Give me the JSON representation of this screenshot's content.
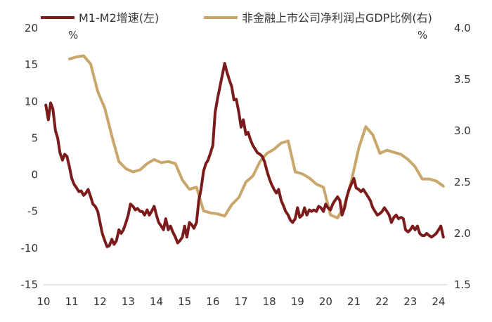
{
  "chart_data": {
    "type": "line",
    "legend": {
      "placement": "top",
      "entries": [
        {
          "label": "M1-M2增速(左)",
          "color": "#7B1B1B"
        },
        {
          "label": "非金融上市公司净利润占GDP比例(右)",
          "color": "#C9A76A"
        }
      ]
    },
    "x_axis": {
      "ticks": [
        "10",
        "11",
        "12",
        "13",
        "14",
        "15",
        "16",
        "17",
        "18",
        "19",
        "20",
        "21",
        "22",
        "23",
        "24"
      ],
      "range": [
        2010,
        2024.3
      ]
    },
    "y_left": {
      "range": [
        -15,
        20
      ],
      "ticks": [
        "20",
        "15",
        "10",
        "5",
        "0",
        "-5",
        "-10",
        "-15"
      ],
      "unit": "%"
    },
    "y_right": {
      "range": [
        1.5,
        4.0
      ],
      "ticks": [
        "4.0",
        "3.5",
        "3.0",
        "2.5",
        "2.0",
        "1.5"
      ],
      "unit": "%"
    },
    "series": [
      {
        "name": "M1-M2增速(左)",
        "axis": "left",
        "color": "#7B1B1B",
        "points": [
          [
            2010.08,
            9.5
          ],
          [
            2010.17,
            7.5
          ],
          [
            2010.25,
            9.8
          ],
          [
            2010.33,
            9.0
          ],
          [
            2010.42,
            6.0
          ],
          [
            2010.5,
            5.0
          ],
          [
            2010.58,
            3.0
          ],
          [
            2010.67,
            2.0
          ],
          [
            2010.75,
            2.8
          ],
          [
            2010.83,
            2.5
          ],
          [
            2010.92,
            1.0
          ],
          [
            2011.0,
            -0.5
          ],
          [
            2011.08,
            -1.3
          ],
          [
            2011.17,
            -1.8
          ],
          [
            2011.25,
            -2.3
          ],
          [
            2011.33,
            -2.2
          ],
          [
            2011.42,
            -2.8
          ],
          [
            2011.5,
            -2.5
          ],
          [
            2011.58,
            -2.0
          ],
          [
            2011.67,
            -3.0
          ],
          [
            2011.75,
            -4.0
          ],
          [
            2011.83,
            -4.3
          ],
          [
            2011.92,
            -5.0
          ],
          [
            2012.0,
            -6.5
          ],
          [
            2012.08,
            -8.0
          ],
          [
            2012.17,
            -9.0
          ],
          [
            2012.25,
            -9.8
          ],
          [
            2012.33,
            -9.7
          ],
          [
            2012.42,
            -8.8
          ],
          [
            2012.5,
            -9.5
          ],
          [
            2012.58,
            -9.0
          ],
          [
            2012.67,
            -7.5
          ],
          [
            2012.75,
            -8.0
          ],
          [
            2012.83,
            -7.5
          ],
          [
            2012.92,
            -6.5
          ],
          [
            2013.0,
            -5.5
          ],
          [
            2013.08,
            -4.0
          ],
          [
            2013.17,
            -4.3
          ],
          [
            2013.25,
            -4.8
          ],
          [
            2013.33,
            -4.6
          ],
          [
            2013.42,
            -5.0
          ],
          [
            2013.5,
            -5.0
          ],
          [
            2013.58,
            -5.5
          ],
          [
            2013.67,
            -4.8
          ],
          [
            2013.75,
            -5.5
          ],
          [
            2013.83,
            -5.0
          ],
          [
            2013.92,
            -4.3
          ],
          [
            2014.0,
            -5.5
          ],
          [
            2014.08,
            -6.5
          ],
          [
            2014.17,
            -7.0
          ],
          [
            2014.25,
            -7.5
          ],
          [
            2014.33,
            -6.0
          ],
          [
            2014.42,
            -7.5
          ],
          [
            2014.5,
            -7.0
          ],
          [
            2014.58,
            -7.8
          ],
          [
            2014.67,
            -8.5
          ],
          [
            2014.75,
            -9.3
          ],
          [
            2014.83,
            -9.0
          ],
          [
            2014.92,
            -8.5
          ],
          [
            2015.0,
            -7.0
          ],
          [
            2015.08,
            -8.5
          ],
          [
            2015.17,
            -6.5
          ],
          [
            2015.25,
            -6.8
          ],
          [
            2015.33,
            -7.3
          ],
          [
            2015.42,
            -6.5
          ],
          [
            2015.5,
            -3.5
          ],
          [
            2015.58,
            -2.0
          ],
          [
            2015.67,
            0.5
          ],
          [
            2015.75,
            1.5
          ],
          [
            2015.83,
            2.0
          ],
          [
            2015.92,
            3.0
          ],
          [
            2016.0,
            4.0
          ],
          [
            2016.08,
            8.5
          ],
          [
            2016.17,
            10.5
          ],
          [
            2016.25,
            12.0
          ],
          [
            2016.33,
            13.5
          ],
          [
            2016.42,
            15.2
          ],
          [
            2016.5,
            14.0
          ],
          [
            2016.58,
            13.0
          ],
          [
            2016.67,
            12.0
          ],
          [
            2016.75,
            10.2
          ],
          [
            2016.83,
            10.3
          ],
          [
            2016.92,
            8.5
          ],
          [
            2017.0,
            6.5
          ],
          [
            2017.08,
            7.5
          ],
          [
            2017.17,
            5.5
          ],
          [
            2017.25,
            5.8
          ],
          [
            2017.33,
            4.8
          ],
          [
            2017.42,
            4.0
          ],
          [
            2017.5,
            3.5
          ],
          [
            2017.58,
            3.0
          ],
          [
            2017.67,
            2.8
          ],
          [
            2017.75,
            2.5
          ],
          [
            2017.83,
            1.8
          ],
          [
            2017.92,
            0.5
          ],
          [
            2018.0,
            -0.5
          ],
          [
            2018.08,
            -1.3
          ],
          [
            2018.17,
            -2.0
          ],
          [
            2018.25,
            -2.5
          ],
          [
            2018.33,
            -2.0
          ],
          [
            2018.42,
            -3.5
          ],
          [
            2018.5,
            -4.2
          ],
          [
            2018.58,
            -5.0
          ],
          [
            2018.67,
            -5.5
          ],
          [
            2018.75,
            -6.2
          ],
          [
            2018.83,
            -6.5
          ],
          [
            2018.92,
            -6.0
          ],
          [
            2019.0,
            -4.5
          ],
          [
            2019.08,
            -5.8
          ],
          [
            2019.17,
            -5.5
          ],
          [
            2019.25,
            -4.5
          ],
          [
            2019.33,
            -5.5
          ],
          [
            2019.42,
            -4.8
          ],
          [
            2019.5,
            -5.0
          ],
          [
            2019.58,
            -4.8
          ],
          [
            2019.67,
            -5.0
          ],
          [
            2019.75,
            -4.3
          ],
          [
            2019.83,
            -4.5
          ],
          [
            2019.92,
            -5.0
          ],
          [
            2020.0,
            -4.0
          ],
          [
            2020.08,
            -4.5
          ],
          [
            2020.17,
            -4.8
          ],
          [
            2020.25,
            -4.0
          ],
          [
            2020.33,
            -3.5
          ],
          [
            2020.42,
            -3.0
          ],
          [
            2020.5,
            -3.5
          ],
          [
            2020.58,
            -5.5
          ],
          [
            2020.67,
            -4.5
          ],
          [
            2020.75,
            -3.0
          ],
          [
            2020.83,
            -2.0
          ],
          [
            2020.92,
            -1.2
          ],
          [
            2021.0,
            -0.5
          ],
          [
            2021.08,
            -1.8
          ],
          [
            2021.17,
            -2.0
          ],
          [
            2021.25,
            -2.3
          ],
          [
            2021.33,
            -2.0
          ],
          [
            2021.42,
            -2.5
          ],
          [
            2021.5,
            -3.0
          ],
          [
            2021.58,
            -3.5
          ],
          [
            2021.67,
            -4.5
          ],
          [
            2021.75,
            -5.0
          ],
          [
            2021.83,
            -5.5
          ],
          [
            2021.92,
            -5.3
          ],
          [
            2022.0,
            -5.0
          ],
          [
            2022.08,
            -4.5
          ],
          [
            2022.17,
            -5.0
          ],
          [
            2022.25,
            -5.5
          ],
          [
            2022.33,
            -6.5
          ],
          [
            2022.42,
            -5.8
          ],
          [
            2022.5,
            -5.5
          ],
          [
            2022.58,
            -6.0
          ],
          [
            2022.67,
            -5.8
          ],
          [
            2022.75,
            -6.0
          ],
          [
            2022.83,
            -7.5
          ],
          [
            2022.92,
            -7.8
          ],
          [
            2023.0,
            -7.5
          ],
          [
            2023.08,
            -7.0
          ],
          [
            2023.17,
            -7.5
          ],
          [
            2023.25,
            -7.0
          ],
          [
            2023.33,
            -8.0
          ],
          [
            2023.42,
            -8.3
          ],
          [
            2023.5,
            -8.3
          ],
          [
            2023.58,
            -8.0
          ],
          [
            2023.67,
            -8.3
          ],
          [
            2023.75,
            -8.5
          ],
          [
            2023.83,
            -8.3
          ],
          [
            2023.92,
            -8.0
          ],
          [
            2024.0,
            -7.5
          ],
          [
            2024.08,
            -7.0
          ],
          [
            2024.17,
            -8.5
          ]
        ]
      },
      {
        "name": "非金融上市公司净利润占GDP比例(右)",
        "axis": "right",
        "color": "#C9A76A",
        "points": [
          [
            2010.92,
            3.7
          ],
          [
            2011.17,
            3.72
          ],
          [
            2011.42,
            3.73
          ],
          [
            2011.67,
            3.65
          ],
          [
            2011.92,
            3.38
          ],
          [
            2012.17,
            3.22
          ],
          [
            2012.42,
            2.95
          ],
          [
            2012.67,
            2.7
          ],
          [
            2012.92,
            2.63
          ],
          [
            2013.17,
            2.6
          ],
          [
            2013.42,
            2.62
          ],
          [
            2013.67,
            2.68
          ],
          [
            2013.92,
            2.72
          ],
          [
            2014.17,
            2.69
          ],
          [
            2014.42,
            2.7
          ],
          [
            2014.67,
            2.68
          ],
          [
            2014.92,
            2.52
          ],
          [
            2015.17,
            2.43
          ],
          [
            2015.42,
            2.45
          ],
          [
            2015.67,
            2.22
          ],
          [
            2015.92,
            2.2
          ],
          [
            2016.17,
            2.19
          ],
          [
            2016.42,
            2.17
          ],
          [
            2016.67,
            2.28
          ],
          [
            2016.92,
            2.35
          ],
          [
            2017.17,
            2.5
          ],
          [
            2017.42,
            2.56
          ],
          [
            2017.67,
            2.7
          ],
          [
            2017.92,
            2.78
          ],
          [
            2018.17,
            2.82
          ],
          [
            2018.42,
            2.88
          ],
          [
            2018.67,
            2.9
          ],
          [
            2018.92,
            2.6
          ],
          [
            2019.17,
            2.58
          ],
          [
            2019.42,
            2.54
          ],
          [
            2019.67,
            2.48
          ],
          [
            2019.92,
            2.45
          ],
          [
            2020.17,
            2.18
          ],
          [
            2020.42,
            2.15
          ],
          [
            2020.67,
            2.28
          ],
          [
            2020.92,
            2.52
          ],
          [
            2021.17,
            2.83
          ],
          [
            2021.42,
            3.04
          ],
          [
            2021.67,
            2.96
          ],
          [
            2021.92,
            2.78
          ],
          [
            2022.17,
            2.81
          ],
          [
            2022.42,
            2.79
          ],
          [
            2022.67,
            2.77
          ],
          [
            2022.92,
            2.72
          ],
          [
            2023.17,
            2.65
          ],
          [
            2023.42,
            2.53
          ],
          [
            2023.67,
            2.53
          ],
          [
            2023.92,
            2.51
          ],
          [
            2024.17,
            2.46
          ]
        ]
      }
    ]
  }
}
